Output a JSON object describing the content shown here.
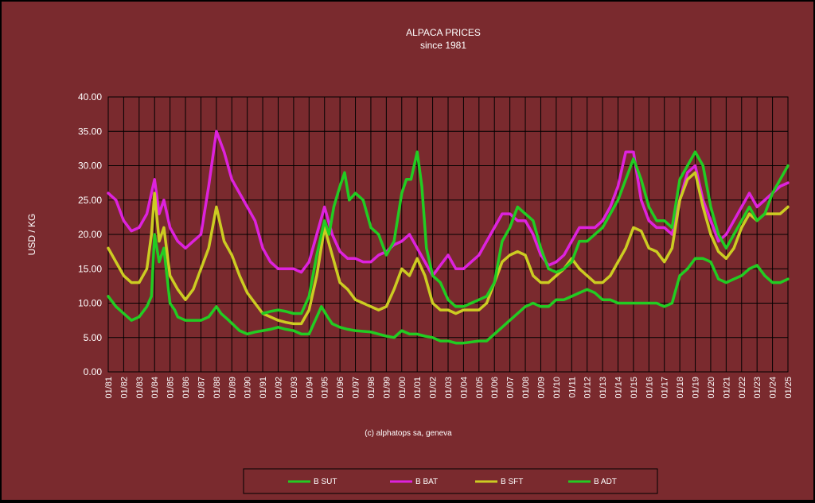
{
  "chart_data": {
    "type": "line",
    "title": "ALPACA PRICES",
    "subtitle": "since 1981",
    "ylabel": "USD / KG",
    "xlabel": "",
    "ylim": [
      0,
      40
    ],
    "y_ticks": [
      "0.00",
      "5.00",
      "10.00",
      "15.00",
      "20.00",
      "25.00",
      "30.00",
      "35.00",
      "40.00"
    ],
    "x_ticks": [
      "01/81",
      "01/82",
      "01/83",
      "01/84",
      "01/85",
      "01/86",
      "01/87",
      "01/88",
      "01/89",
      "01/90",
      "01/91",
      "01/92",
      "01/93",
      "01/94",
      "01/95",
      "01/96",
      "01/97",
      "01/98",
      "01/99",
      "01/00",
      "01/01",
      "01/02",
      "01/03",
      "01/04",
      "01/05",
      "01/06",
      "01/07",
      "01/08",
      "01/09",
      "01/10",
      "01/11",
      "01/12",
      "01/13",
      "01/14",
      "01/15",
      "01/16",
      "01/17",
      "01/18",
      "01/19",
      "01/20",
      "01/21",
      "01/22",
      "01/23",
      "01/24",
      "01/25"
    ],
    "x_range": [
      1981,
      2025
    ],
    "grid": true,
    "legend_position": "bottom",
    "credit": "(c) alphatops sa, geneva",
    "series": [
      {
        "name": "B SUT",
        "color": "#22cc22",
        "x": [
          1981,
          1981.5,
          1982,
          1982.5,
          1983,
          1983.5,
          1983.8,
          1984,
          1984.3,
          1984.6,
          1985,
          1985.3,
          1985.5,
          1986,
          1986.5,
          1987,
          1987.5,
          1988,
          1988.3,
          1988.8,
          1989.5,
          1990,
          1990.5,
          1991,
          1991.5,
          1992,
          1992.5,
          1993,
          1993.5,
          1994,
          1994.5,
          1994.8,
          1995.2,
          1995.5,
          1996,
          1996.5,
          1997,
          1998,
          1998.5,
          1999,
          1999.5,
          2000,
          2000.5,
          2001,
          2001.5,
          2002,
          2002.5,
          2003,
          2003.5,
          2004,
          2005,
          2005.5,
          2006,
          2006.5,
          2007,
          2007.5,
          2008,
          2008.5,
          2009,
          2009.5,
          2010,
          2010.5,
          2011,
          2011.5,
          2012,
          2012.5,
          2013,
          2013.5,
          2014,
          2015,
          2016,
          2016.5,
          2017,
          2017.5,
          2018,
          2018.5,
          2019,
          2019.5,
          2020,
          2020.5,
          2021,
          2021.5,
          2022,
          2022.5,
          2023,
          2023.5,
          2024,
          2024.5,
          2025
        ],
        "values": [
          11,
          9.5,
          8.5,
          7.5,
          8,
          9.5,
          11,
          20,
          16,
          18,
          10,
          9,
          8,
          7.5,
          7.5,
          7.5,
          8,
          9.5,
          8.5,
          7.5,
          6,
          5.5,
          5.8,
          6,
          6.2,
          6.5,
          6.2,
          6,
          5.5,
          5.5,
          8,
          9.5,
          8,
          7,
          6.5,
          6.2,
          6,
          5.8,
          5.5,
          5.2,
          5,
          6,
          5.5,
          5.5,
          5.2,
          5,
          4.5,
          4.5,
          4.2,
          4.2,
          4.5,
          4.5,
          5.5,
          6.5,
          7.5,
          8.5,
          9.5,
          10,
          9.5,
          9.5,
          10.5,
          10.5,
          11,
          11.5,
          12,
          11.5,
          10.5,
          10.5,
          10,
          10,
          10,
          10,
          9.5,
          10,
          14,
          15,
          16.5,
          16.5,
          16,
          13.5,
          13,
          13.5,
          14,
          15,
          15.5,
          14,
          13,
          13,
          13.5
        ]
      },
      {
        "name": "B BAT",
        "color": "#dd22dd",
        "x": [
          1981,
          1981.5,
          1982,
          1982.5,
          1983,
          1983.5,
          1983.8,
          1984,
          1984.3,
          1984.6,
          1985,
          1985.5,
          1986,
          1986.5,
          1987,
          1987.5,
          1988,
          1988.5,
          1989,
          1989.5,
          1990,
          1990.5,
          1991,
          1991.5,
          1992,
          1992.5,
          1993,
          1993.5,
          1994,
          1994.5,
          1995,
          1995.5,
          1996,
          1996.5,
          1997,
          1997.5,
          1998,
          1998.5,
          1999,
          1999.5,
          2000,
          2000.5,
          2001,
          2001.5,
          2002,
          2002.5,
          2003,
          2003.5,
          2004,
          2004.5,
          2005,
          2005.5,
          2006,
          2006.5,
          2007,
          2007.5,
          2008,
          2008.5,
          2009,
          2009.5,
          2010,
          2010.5,
          2011,
          2011.5,
          2012,
          2012.5,
          2013,
          2013.5,
          2014,
          2014.5,
          2015,
          2015.5,
          2016,
          2016.5,
          2017,
          2017.5,
          2018,
          2018.5,
          2019,
          2019.5,
          2020,
          2020.5,
          2021,
          2021.5,
          2022,
          2022.5,
          2023,
          2023.5,
          2024,
          2024.5,
          2025
        ],
        "values": [
          26,
          25,
          22,
          20.5,
          21,
          23,
          26,
          28,
          23,
          25,
          21,
          19,
          18,
          19,
          20,
          27,
          35,
          32,
          28,
          26,
          24,
          22,
          18,
          16,
          15,
          15,
          15,
          14.5,
          16,
          20,
          24,
          20,
          17.5,
          16.5,
          16.5,
          16,
          16,
          17,
          17.5,
          18.5,
          19,
          20,
          18,
          16,
          14,
          15.5,
          17,
          15,
          15,
          16,
          17,
          19,
          21,
          23,
          23,
          22,
          22,
          20,
          17,
          15.5,
          16,
          17,
          19,
          21,
          21,
          21,
          22,
          24,
          27,
          32,
          32,
          25,
          22,
          21,
          21,
          20,
          25,
          29,
          30,
          25,
          22,
          19,
          20,
          22,
          24,
          26,
          24,
          25,
          26,
          27,
          27.5
        ]
      },
      {
        "name": "B SFT",
        "color": "#cccc22",
        "x": [
          1981,
          1981.5,
          1982,
          1982.5,
          1983,
          1983.5,
          1983.8,
          1984,
          1984.3,
          1984.6,
          1985,
          1985.5,
          1986,
          1986.5,
          1987,
          1987.5,
          1988,
          1988.5,
          1989,
          1989.5,
          1990,
          1990.5,
          1991,
          1991.5,
          1992,
          1992.5,
          1993,
          1993.5,
          1994,
          1994.5,
          1995,
          1995.5,
          1996,
          1996.5,
          1997,
          1997.5,
          1998,
          1998.5,
          1999,
          1999.5,
          2000,
          2000.5,
          2001,
          2001.5,
          2002,
          2002.5,
          2003,
          2003.5,
          2004,
          2004.5,
          2005,
          2005.5,
          2006,
          2006.5,
          2007,
          2007.5,
          2008,
          2008.5,
          2009,
          2009.5,
          2010,
          2010.5,
          2011,
          2011.5,
          2012,
          2012.5,
          2013,
          2013.5,
          2014,
          2014.5,
          2015,
          2015.5,
          2016,
          2016.5,
          2017,
          2017.5,
          2018,
          2018.5,
          2019,
          2019.5,
          2020,
          2020.5,
          2021,
          2021.5,
          2022,
          2022.5,
          2023,
          2023.5,
          2024,
          2024.5,
          2025
        ],
        "values": [
          18,
          16,
          14,
          13,
          13,
          15,
          20,
          26,
          19,
          21,
          14,
          12,
          10.5,
          12,
          15,
          18,
          24,
          19,
          17,
          14,
          11.5,
          10,
          8.5,
          8,
          7.5,
          7.2,
          7,
          7,
          9,
          14,
          21,
          17,
          13,
          12,
          10.5,
          10,
          9.5,
          9,
          9.5,
          12,
          15,
          14,
          16.5,
          14,
          10,
          9,
          9,
          8.5,
          9,
          9,
          9,
          10,
          13,
          16,
          17,
          17.5,
          17,
          14,
          13,
          13,
          14,
          15,
          16.5,
          15,
          14,
          13,
          13,
          14,
          16,
          18,
          21,
          20.5,
          18,
          17.5,
          16,
          18,
          25,
          28,
          29,
          24,
          20,
          17.5,
          16.5,
          18,
          21,
          23,
          22,
          23,
          23,
          23,
          24
        ]
      },
      {
        "name": "B ADT",
        "color": "#22cc22",
        "x": [
          1991,
          1991.5,
          1992,
          1992.5,
          1993,
          1993.5,
          1994,
          1994.5,
          1995,
          1995.3,
          1995.6,
          1996,
          1996.3,
          1996.6,
          1997,
          1997.5,
          1998,
          1998.5,
          1999,
          1999.5,
          2000,
          2000.3,
          2000.6,
          2001,
          2001.3,
          2001.6,
          2002,
          2002.5,
          2003,
          2003.5,
          2004,
          2004.5,
          2005,
          2005.5,
          2006,
          2006.5,
          2007,
          2007.5,
          2008,
          2008.5,
          2009,
          2009.5,
          2010,
          2010.5,
          2011,
          2011.5,
          2012,
          2012.5,
          2013,
          2013.5,
          2014,
          2014.5,
          2015,
          2015.5,
          2016,
          2016.5,
          2017,
          2017.5,
          2018,
          2018.5,
          2019,
          2019.5,
          2020,
          2020.5,
          2021,
          2021.5,
          2022,
          2022.5,
          2023,
          2023.5,
          2024,
          2024.5,
          2025
        ],
        "values": [
          8.5,
          8.8,
          9,
          8.8,
          8.5,
          8.5,
          11,
          17,
          22,
          20,
          24,
          27,
          29,
          25,
          26,
          25,
          21,
          20,
          17,
          19,
          26,
          28,
          28,
          32,
          27,
          18,
          14,
          13,
          10.5,
          9.5,
          9.5,
          10,
          10.5,
          11,
          13,
          19,
          21,
          24,
          23,
          22,
          18,
          15,
          14.5,
          15,
          16,
          19,
          19,
          20,
          21,
          23,
          25,
          28,
          31,
          28,
          24,
          22,
          22,
          21,
          28,
          30,
          32,
          30,
          24,
          20,
          18,
          20,
          22,
          24,
          22,
          23,
          26,
          28,
          30
        ]
      }
    ]
  }
}
